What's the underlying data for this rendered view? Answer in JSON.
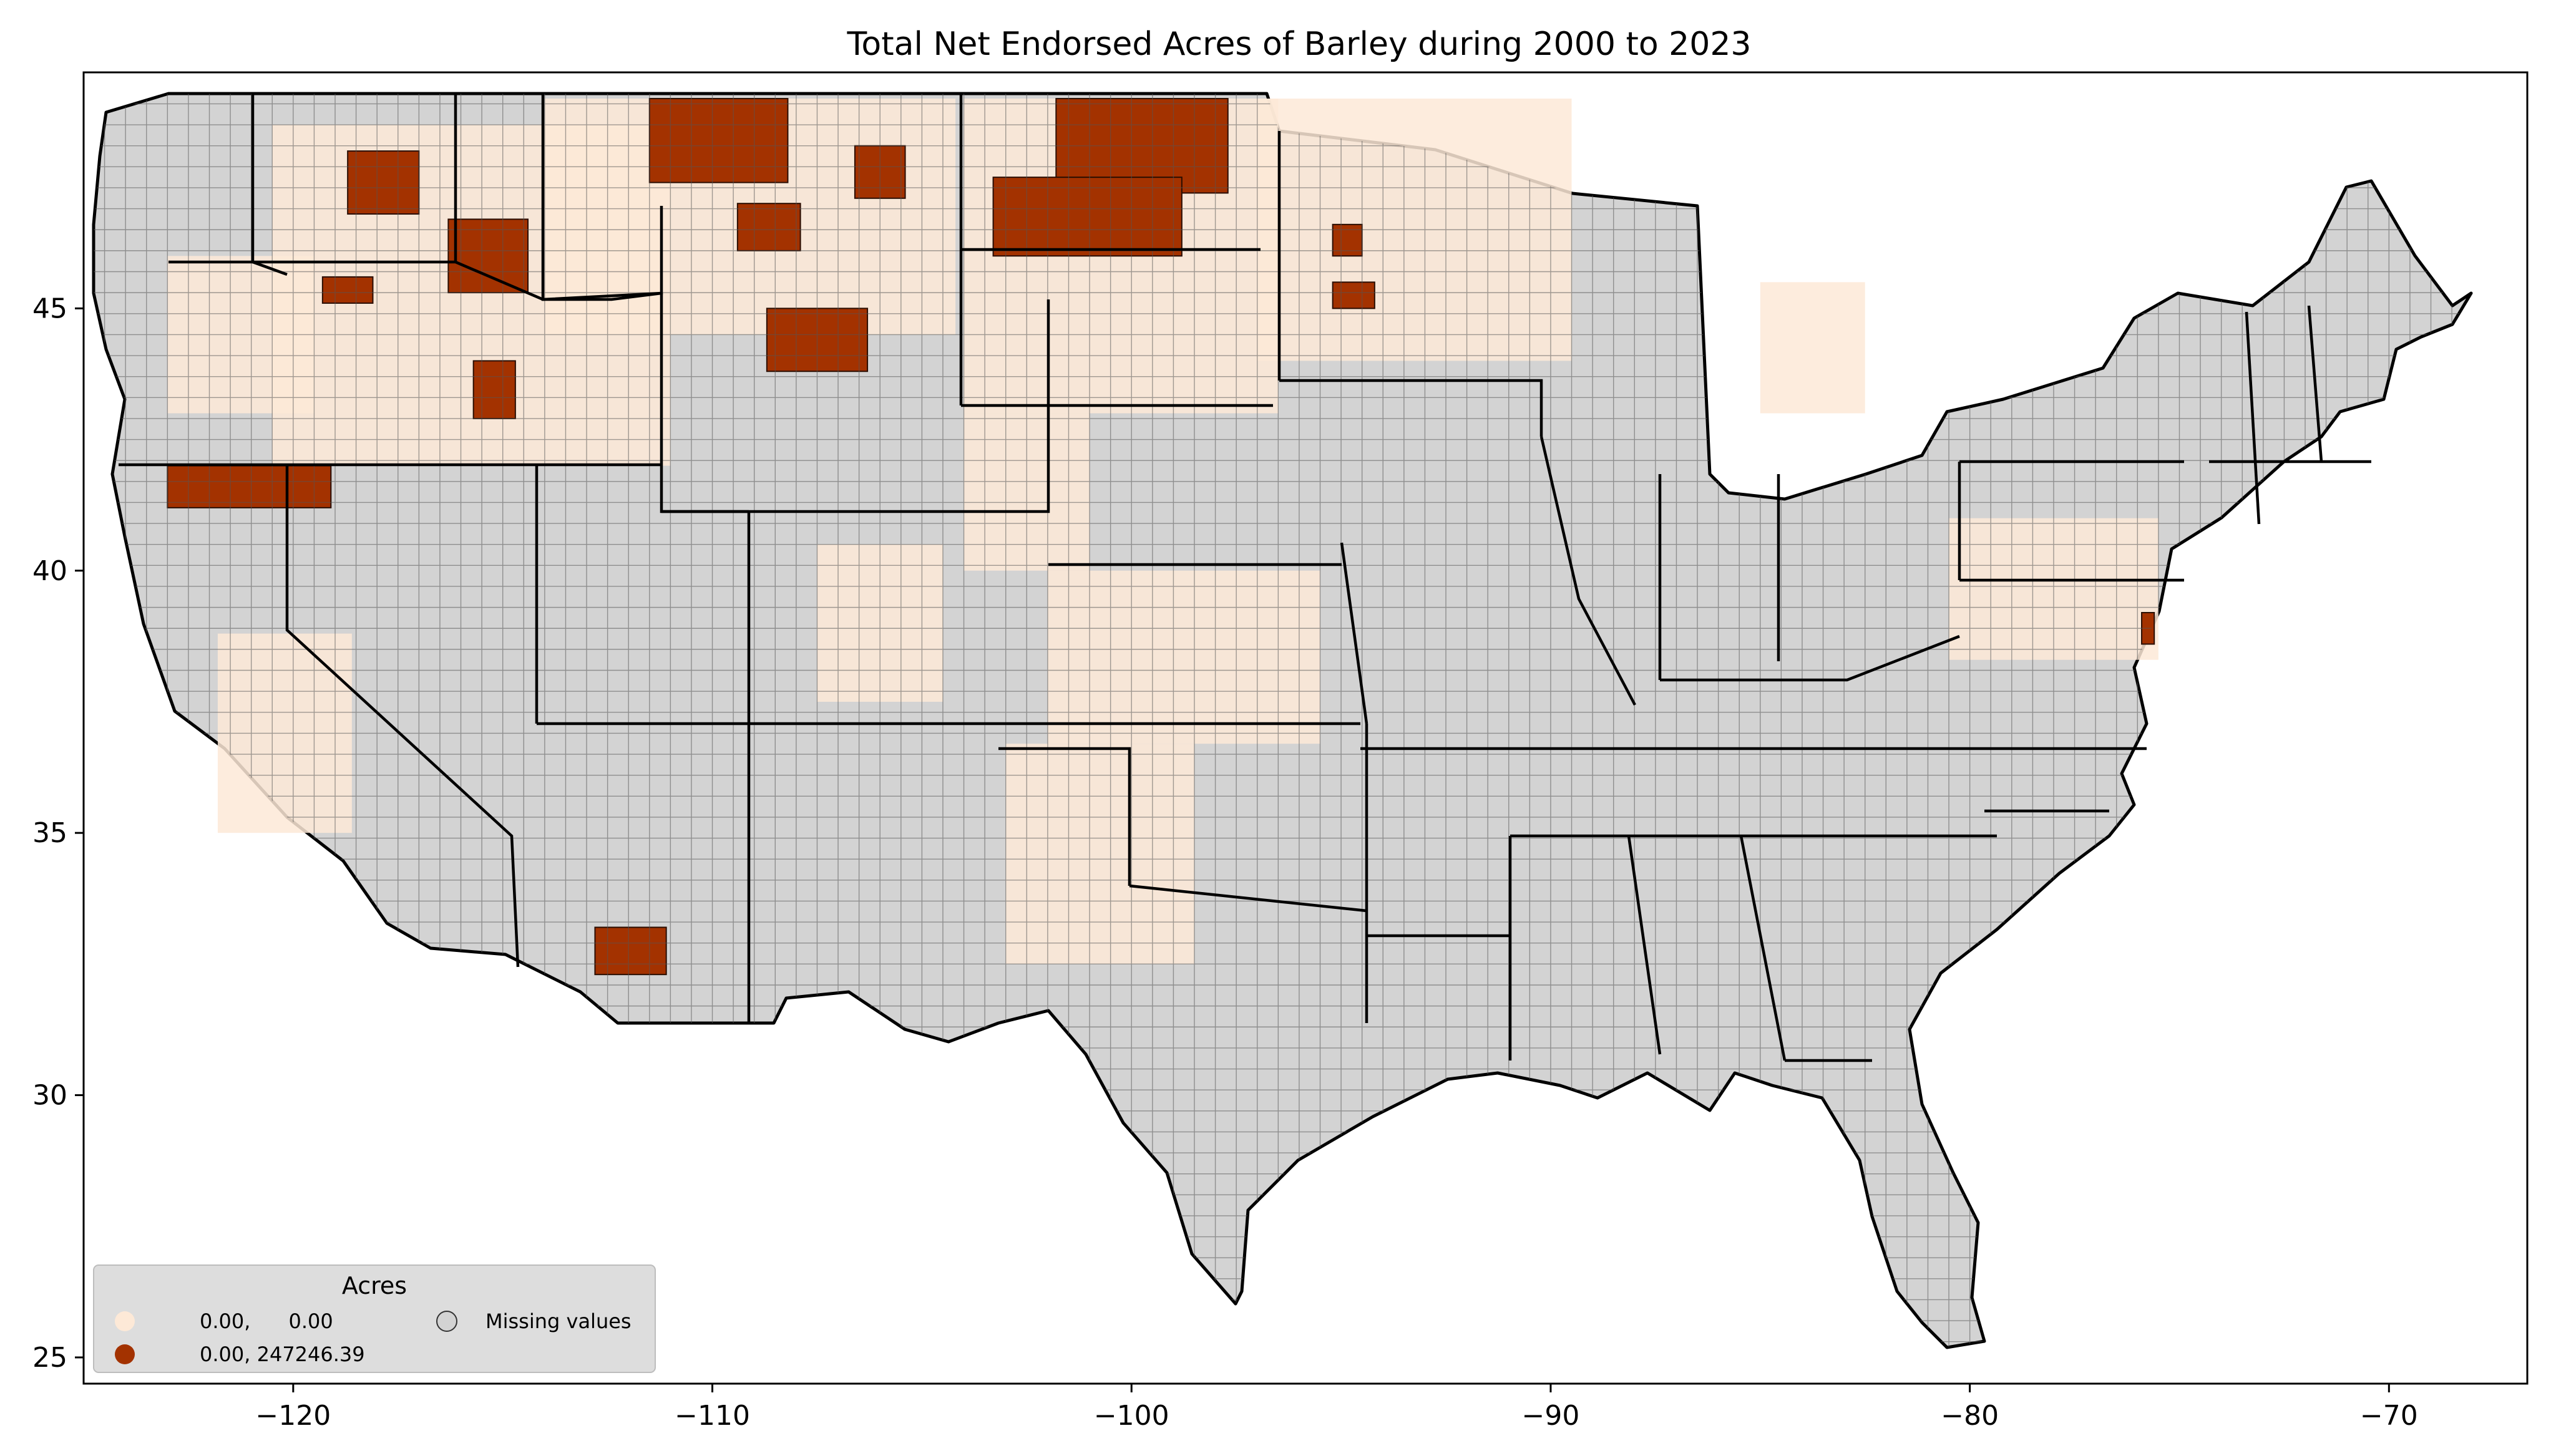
{
  "chart_data": {
    "type": "map",
    "title": "Total Net Endorsed Acres of Barley during 2000 to 2023",
    "xlim": [
      -125,
      -66.7
    ],
    "ylim": [
      24.5,
      49.5
    ],
    "x_ticks": [
      -120,
      -110,
      -100,
      -90,
      -80,
      -70
    ],
    "x_tick_labels": [
      "−120",
      "−110",
      "−100",
      "−90",
      "−80",
      "−70"
    ],
    "y_ticks": [
      25,
      30,
      35,
      40,
      45
    ],
    "y_tick_labels": [
      "25",
      "30",
      "35",
      "40",
      "45"
    ],
    "legend": {
      "title": "Acres",
      "placement": "lower-left",
      "entries": [
        {
          "label": "0.00,      0.00",
          "color": "#fde9d7"
        },
        {
          "label": "0.00, 247246.39",
          "color": "#a33200"
        },
        {
          "label": "Missing values",
          "color": "#d3d3d3"
        }
      ]
    },
    "colors": {
      "missing": "#d3d3d3",
      "low": "#fde9d7",
      "high": "#a33200",
      "county_border": "#3a3a3a",
      "state_border": "#000000"
    },
    "high_value_regions": [
      {
        "lon": [
          -111.5,
          -108.2
        ],
        "lat": [
          47.4,
          49.0
        ]
      },
      {
        "lon": [
          -101.8,
          -97.7
        ],
        "lat": [
          47.2,
          49.0
        ]
      },
      {
        "lon": [
          -106.6,
          -105.4
        ],
        "lat": [
          47.1,
          48.1
        ]
      },
      {
        "lon": [
          -103.3,
          -98.8
        ],
        "lat": [
          46.0,
          47.5
        ]
      },
      {
        "lon": [
          -118.7,
          -117.0
        ],
        "lat": [
          46.8,
          48.0
        ]
      },
      {
        "lon": [
          -116.3,
          -114.4
        ],
        "lat": [
          45.3,
          46.7
        ]
      },
      {
        "lon": [
          -119.3,
          -118.1
        ],
        "lat": [
          45.1,
          45.6
        ]
      },
      {
        "lon": [
          -108.7,
          -106.3
        ],
        "lat": [
          43.8,
          45.0
        ]
      },
      {
        "lon": [
          -109.4,
          -107.9
        ],
        "lat": [
          46.1,
          47.0
        ]
      },
      {
        "lon": [
          -115.7,
          -114.7
        ],
        "lat": [
          42.9,
          44.0
        ]
      },
      {
        "lon": [
          -123.0,
          -119.1
        ],
        "lat": [
          41.2,
          42.0
        ]
      },
      {
        "lon": [
          -95.2,
          -94.5
        ],
        "lat": [
          46.0,
          46.6
        ]
      },
      {
        "lon": [
          -95.2,
          -94.2
        ],
        "lat": [
          45.0,
          45.5
        ]
      },
      {
        "lon": [
          -112.8,
          -111.1
        ],
        "lat": [
          32.3,
          33.2
        ]
      },
      {
        "lon": [
          -75.9,
          -75.6
        ],
        "lat": [
          38.6,
          39.2
        ]
      }
    ],
    "low_value_regions": [
      {
        "lon": [
          -114.0,
          -104.2
        ],
        "lat": [
          44.5,
          49.0
        ]
      },
      {
        "lon": [
          -104.0,
          -96.5
        ],
        "lat": [
          43.0,
          49.0
        ]
      },
      {
        "lon": [
          -97.0,
          -89.5
        ],
        "lat": [
          44.0,
          49.0
        ]
      },
      {
        "lon": [
          -120.5,
          -111.0
        ],
        "lat": [
          42.0,
          48.5
        ]
      },
      {
        "lon": [
          -104.0,
          -101.0
        ],
        "lat": [
          40.0,
          43.0
        ]
      },
      {
        "lon": [
          -102.0,
          -95.5
        ],
        "lat": [
          36.7,
          40.0
        ]
      },
      {
        "lon": [
          -103.0,
          -98.5
        ],
        "lat": [
          32.5,
          36.7
        ]
      },
      {
        "lon": [
          -121.8,
          -118.6
        ],
        "lat": [
          35.0,
          38.8
        ]
      },
      {
        "lon": [
          -123.0,
          -119.5
        ],
        "lat": [
          43.0,
          46.0
        ]
      },
      {
        "lon": [
          -80.5,
          -75.5
        ],
        "lat": [
          38.3,
          41.0
        ]
      },
      {
        "lon": [
          -85.0,
          -82.5
        ],
        "lat": [
          43.0,
          45.5
        ]
      },
      {
        "lon": [
          -107.5,
          -104.5
        ],
        "lat": [
          37.5,
          40.5
        ]
      }
    ]
  }
}
